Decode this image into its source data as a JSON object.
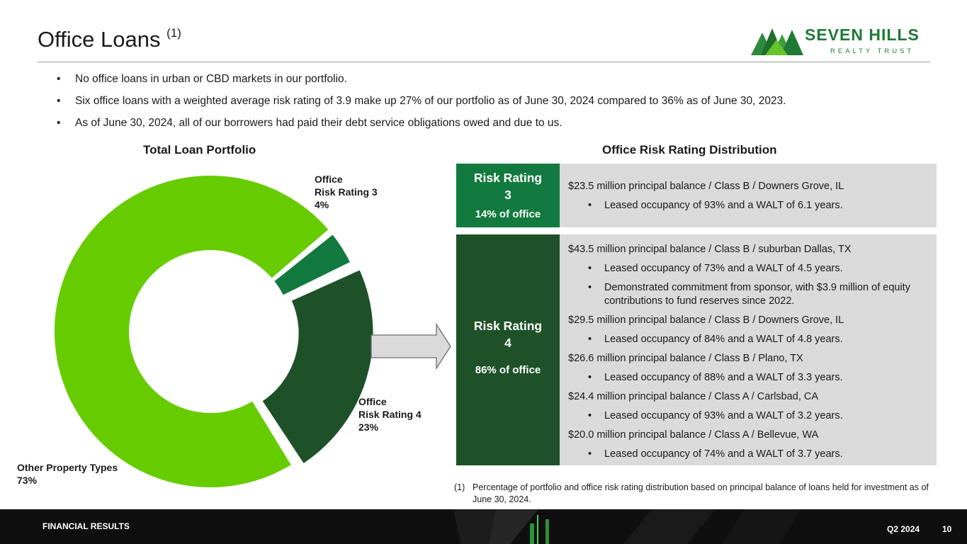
{
  "header": {
    "title": "Office Loans",
    "title_footnote_ref": "(1)"
  },
  "logo": {
    "name": "SEVEN HILLS",
    "sub": "REALTY TRUST",
    "icon": "mountains-logo-icon"
  },
  "bullets": [
    "No office loans in urban or CBD markets in our portfolio.",
    "Six office loans with a weighted average risk rating of 3.9 make up 27% of our portfolio as of June 30, 2024 compared to 36% as of June 30, 2023.",
    "As of June 30, 2024, all of our borrowers had paid their debt service obligations owed and due to us."
  ],
  "left_section": {
    "title": "Total Loan Portfolio"
  },
  "chart_data": {
    "type": "pie",
    "title": "Total Loan Portfolio",
    "donut": true,
    "slices": [
      {
        "label_line1": "Office",
        "label_line2": "Risk Rating 3",
        "value": 4,
        "value_label": "4%",
        "color": "#127a3e"
      },
      {
        "label_line1": "Office",
        "label_line2": "Risk Rating 4",
        "value": 23,
        "value_label": "23%",
        "color": "#1e5128",
        "exploded": true
      },
      {
        "label_line1": "Other Property Types",
        "label_line2": "",
        "value": 73,
        "value_label": "73%",
        "color": "#66cc00"
      }
    ]
  },
  "right_section": {
    "title": "Office Risk Rating Distribution",
    "ratings": [
      {
        "title_line1": "Risk Rating",
        "title_line2": "3",
        "share": "14% of office",
        "color": "#127a3e",
        "loans": [
          {
            "heading": "$23.5 million principal balance / Class B / Downers Grove, IL",
            "bullets": [
              "Leased occupancy of 93% and a WALT of 6.1 years."
            ]
          }
        ]
      },
      {
        "title_line1": "Risk Rating",
        "title_line2": "4",
        "share": "86% of office",
        "color": "#1e5128",
        "loans": [
          {
            "heading": "$43.5 million principal balance / Class B / suburban Dallas, TX",
            "bullets": [
              "Leased occupancy of 73% and a WALT of 4.5 years.",
              "Demonstrated commitment from sponsor, with $3.9 million of equity contributions to fund reserves since 2022."
            ]
          },
          {
            "heading": "$29.5 million principal balance / Class B / Downers Grove, IL",
            "bullets": [
              "Leased occupancy of 84% and a WALT of 4.8 years."
            ]
          },
          {
            "heading": "$26.6 million principal balance / Class B / Plano, TX",
            "bullets": [
              "Leased occupancy of 88% and a WALT of 3.3 years."
            ]
          },
          {
            "heading": "$24.4 million principal balance / Class A / Carlsbad, CA",
            "bullets": [
              "Leased occupancy of 93% and a WALT of 3.2 years."
            ]
          },
          {
            "heading": "$20.0 million principal balance / Class A / Bellevue, WA",
            "bullets": [
              "Leased occupancy of 74% and a WALT of 3.7 years."
            ]
          }
        ]
      }
    ]
  },
  "footnote": {
    "num": "(1)",
    "text": "Percentage of portfolio and office risk rating distribution based on principal balance of loans held for investment as of June 30, 2024."
  },
  "footer": {
    "left": "FINANCIAL RESULTS",
    "quarter": "Q2 2024",
    "page": "10"
  }
}
